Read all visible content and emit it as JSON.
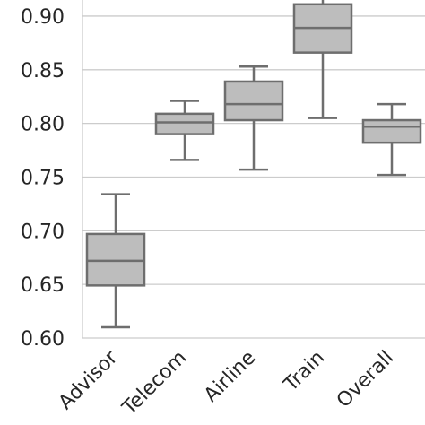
{
  "chart_data": {
    "type": "box",
    "title": "",
    "xlabel": "",
    "ylabel": "",
    "ylim": [
      0.6,
      0.915
    ],
    "y_ticks": [
      "0.60",
      "0.65",
      "0.70",
      "0.75",
      "0.80",
      "0.85",
      "0.90"
    ],
    "grid": true,
    "categories": [
      "Advisor",
      "Telecom",
      "Airline",
      "Train",
      "Overall"
    ],
    "series": [
      {
        "category": "Advisor",
        "whisker_low": 0.61,
        "q1": 0.649,
        "median": 0.672,
        "q3": 0.697,
        "whisker_high": 0.734
      },
      {
        "category": "Telecom",
        "whisker_low": 0.766,
        "q1": 0.79,
        "median": 0.801,
        "q3": 0.809,
        "whisker_high": 0.821
      },
      {
        "category": "Airline",
        "whisker_low": 0.757,
        "q1": 0.803,
        "median": 0.818,
        "q3": 0.839,
        "whisker_high": 0.853
      },
      {
        "category": "Train",
        "whisker_low": 0.805,
        "q1": 0.866,
        "median": 0.889,
        "q3": 0.911,
        "whisker_high": 0.925
      },
      {
        "category": "Overall",
        "whisker_low": 0.752,
        "q1": 0.782,
        "median": 0.797,
        "q3": 0.803,
        "whisker_high": 0.818
      }
    ],
    "colors": {
      "box_fill": "#bdbdbd",
      "box_edge": "#6e6e6e",
      "grid": "#cccccc",
      "text": "#262626"
    }
  }
}
